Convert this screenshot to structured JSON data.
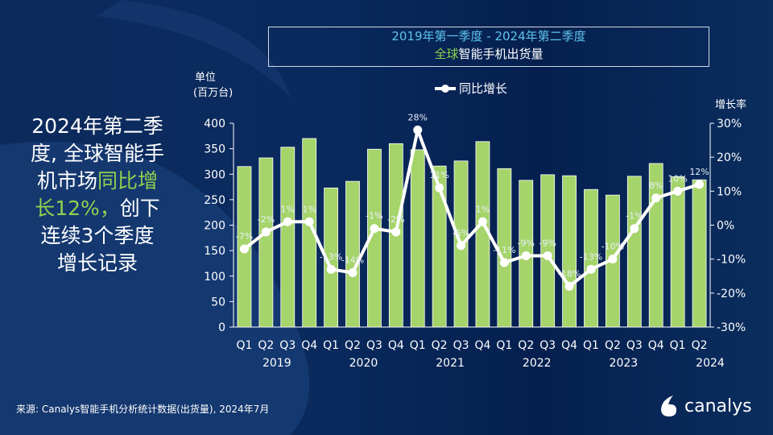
{
  "title": {
    "line1": "2019年第一季度 - 2024年第二季度",
    "line2_green": "全球",
    "line2_white": "智能手机出货量"
  },
  "headline": {
    "lines": [
      "2024年第二季",
      "度, 全球智能手",
      "机市场",
      "同比增",
      "长12%，",
      "创下",
      "连续3个季度",
      "增长记录"
    ]
  },
  "source": "来源: Canalys智能手机分析统计数据(出货量), 2024年7月",
  "logo": {
    "text": "canalys"
  },
  "colors": {
    "bar": "#a5d46a",
    "line": "#ffffff",
    "title_accent": "#5ec3ec",
    "highlight": "#8fd14f"
  },
  "chart_data": {
    "type": "bar+line",
    "categories": [
      "Q1",
      "Q2",
      "Q3",
      "Q4",
      "Q1",
      "Q2",
      "Q3",
      "Q4",
      "Q1",
      "Q2",
      "Q3",
      "Q4",
      "Q1",
      "Q2",
      "Q3",
      "Q4",
      "Q1",
      "Q2",
      "Q3",
      "Q4",
      "Q1",
      "Q2"
    ],
    "years": [
      "2019",
      "2020",
      "2021",
      "2022",
      "2023",
      "2024"
    ],
    "ylabel_left": [
      "单位",
      "(百万台)"
    ],
    "ylabel_right": "增长率",
    "ylim_left": [
      0,
      400
    ],
    "yticks_left": [
      "0",
      "50",
      "100",
      "150",
      "200",
      "250",
      "300",
      "350",
      "400"
    ],
    "ylim_right": [
      -30,
      30
    ],
    "yticks_right": [
      "-30%",
      "-20%",
      "-10%",
      "0%",
      "10%",
      "20%",
      "30%"
    ],
    "bars": [
      315,
      332,
      353,
      370,
      273,
      286,
      349,
      360,
      348,
      316,
      326,
      364,
      311,
      288,
      299,
      297,
      270,
      259,
      296,
      321,
      295,
      289
    ],
    "series": [
      {
        "name": "同比增长",
        "values": [
          -7,
          -2,
          1,
          1,
          -13,
          -14,
          -1,
          -2,
          28,
          11,
          -6,
          1,
          -11,
          -9,
          -9,
          -18,
          -13,
          -10,
          -1,
          8,
          10,
          12
        ],
        "labels": [
          "-7%",
          "-2%",
          "1%",
          "1%",
          "-13%",
          "-14%",
          "-1%",
          "-2%",
          "28%",
          "11%",
          "-6%",
          "1%",
          "-11%",
          "-9%",
          "-9%",
          "-18%",
          "-13%",
          "-10%",
          "-1%",
          "8%",
          "10%",
          "12%"
        ]
      }
    ],
    "legend": "top-center"
  }
}
